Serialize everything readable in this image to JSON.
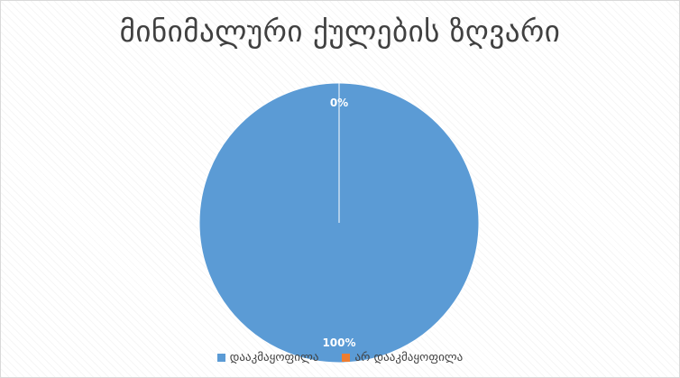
{
  "chart_data": {
    "type": "pie",
    "title": "მინიმალური ქულების ზღვარი",
    "categories": [
      "დააკმაყოფილა",
      "არ დააკმაყოფილა"
    ],
    "values": [
      100,
      0
    ],
    "data_labels": [
      "100%",
      "0%"
    ],
    "colors": [
      "#5b9bd5",
      "#ed7d31"
    ],
    "label_color": "#ffffff",
    "legend_position": "bottom"
  }
}
